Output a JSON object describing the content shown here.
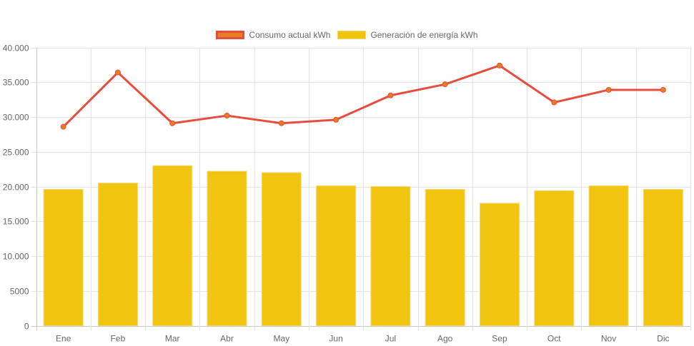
{
  "chart_data": {
    "type": "bar",
    "title": "",
    "xlabel": "",
    "ylabel": "",
    "categories": [
      "Ene",
      "Feb",
      "Mar",
      "Abr",
      "May",
      "Jun",
      "Jul",
      "Ago",
      "Sep",
      "Oct",
      "Nov",
      "Dic"
    ],
    "ylim": [
      0,
      40000
    ],
    "yticks": [
      0,
      5000,
      10000,
      15000,
      20000,
      25000,
      30000,
      35000,
      40000
    ],
    "ytick_labels": [
      "0",
      "5000",
      "10.000",
      "15.000",
      "20.000",
      "25.000",
      "30.000",
      "35.000",
      "40.000"
    ],
    "grid": true,
    "legend_position": "top-center",
    "series": [
      {
        "name": "Consumo actual kWh",
        "type": "line",
        "color": "#e74c3c",
        "point_color": "#e67e22",
        "values": [
          28600,
          36400,
          29100,
          30200,
          29100,
          29600,
          33100,
          34700,
          37400,
          32100,
          33900,
          33900
        ]
      },
      {
        "name": "Generación de energía kWh",
        "type": "bar",
        "color": "#f1c40f",
        "values": [
          19600,
          20500,
          23000,
          22200,
          22000,
          20100,
          20000,
          19600,
          17600,
          19400,
          20100,
          19600
        ]
      }
    ]
  }
}
